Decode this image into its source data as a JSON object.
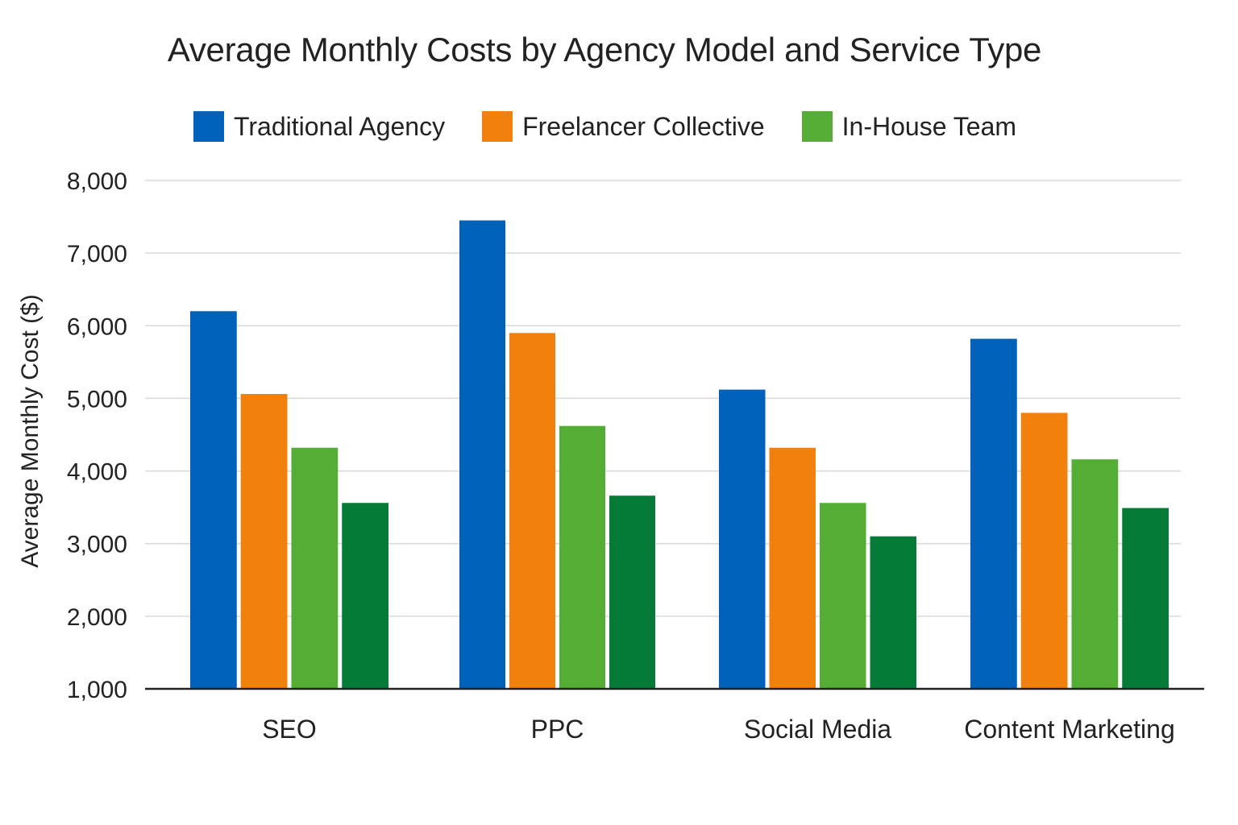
{
  "chart_data": {
    "type": "bar",
    "title": "Average Monthly Costs by Agency Model and Service Type",
    "xlabel": "",
    "ylabel": "Average Monthly Cost ($)",
    "ylim": [
      1000,
      8000
    ],
    "yticks": [
      "1,000",
      "2,000",
      "3,000",
      "4,000",
      "5,000",
      "6,000",
      "7,000",
      "8,000"
    ],
    "ytick_values": [
      1000,
      2000,
      3000,
      4000,
      5000,
      6000,
      7000,
      8000
    ],
    "grid": true,
    "legend_position": "top",
    "categories": [
      "SEO",
      "PPC",
      "Social Media",
      "Content Marketing"
    ],
    "series": [
      {
        "name": "Traditional Agency",
        "color": "#0061b8",
        "values": [
          6200,
          7450,
          5120,
          5820
        ],
        "in_legend": true
      },
      {
        "name": "Freelancer Collective",
        "color": "#f2800d",
        "values": [
          5060,
          5900,
          4320,
          4800
        ],
        "in_legend": true
      },
      {
        "name": "In-House Team",
        "color": "#54ad34",
        "values": [
          4320,
          4620,
          3560,
          4160
        ],
        "in_legend": true
      },
      {
        "name": "",
        "color": "#067a37",
        "values": [
          3560,
          3660,
          3100,
          3490
        ],
        "in_legend": false
      }
    ]
  }
}
